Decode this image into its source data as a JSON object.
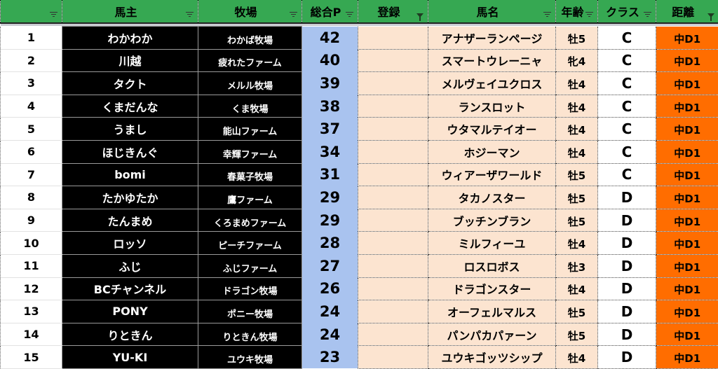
{
  "headers": [
    "",
    "馬主",
    "牧場",
    "総合P",
    "登録",
    "馬名",
    "年齢",
    "クラス",
    "距離"
  ],
  "active_filters": [
    "登録",
    "距離"
  ],
  "colors": {
    "header": "#36a852",
    "owner_bg": "#000000",
    "points_bg": "#a9c3ef",
    "entry_bg": "#fce4d0",
    "distance_bg": "#ff6d00"
  },
  "rows": [
    {
      "no": "1",
      "owner": "わかわか",
      "farm": "わかば牧場",
      "points": "42",
      "reg": "",
      "horse": "アナザーランページ",
      "age": "牡5",
      "cls": "C",
      "dist": "中D1"
    },
    {
      "no": "2",
      "owner": "川越",
      "farm": "疲れたファーム",
      "points": "40",
      "reg": "",
      "horse": "スマートウレーニャ",
      "age": "牝4",
      "cls": "C",
      "dist": "中D1"
    },
    {
      "no": "3",
      "owner": "タクト",
      "farm": "メルル牧場",
      "points": "39",
      "reg": "",
      "horse": "メルヴェイユクロス",
      "age": "牡4",
      "cls": "C",
      "dist": "中D1"
    },
    {
      "no": "4",
      "owner": "くまだんな",
      "farm": "くま牧場",
      "points": "38",
      "reg": "",
      "horse": "ランスロット",
      "age": "牡4",
      "cls": "C",
      "dist": "中D1"
    },
    {
      "no": "5",
      "owner": "うまし",
      "farm": "能山ファーム",
      "points": "37",
      "reg": "",
      "horse": "ウタマルテイオー",
      "age": "牡4",
      "cls": "C",
      "dist": "中D1"
    },
    {
      "no": "6",
      "owner": "ほじきんぐ",
      "farm": "幸輝ファーム",
      "points": "34",
      "reg": "",
      "horse": "ホジーマン",
      "age": "牡4",
      "cls": "C",
      "dist": "中D1"
    },
    {
      "no": "7",
      "owner": "bomi",
      "farm": "春菓子牧場",
      "points": "31",
      "reg": "",
      "horse": "ウィアーザワールド",
      "age": "牡5",
      "cls": "C",
      "dist": "中D1"
    },
    {
      "no": "8",
      "owner": "たかゆたか",
      "farm": "鷹ファーム",
      "points": "29",
      "reg": "",
      "horse": "タカノスター",
      "age": "牡5",
      "cls": "D",
      "dist": "中D1"
    },
    {
      "no": "9",
      "owner": "たんまめ",
      "farm": "くろまめファーム",
      "points": "29",
      "reg": "",
      "horse": "ブッチンブラン",
      "age": "牡5",
      "cls": "D",
      "dist": "中D1"
    },
    {
      "no": "10",
      "owner": "ロッソ",
      "farm": "ピーチファーム",
      "points": "28",
      "reg": "",
      "horse": "ミルフィーユ",
      "age": "牡4",
      "cls": "D",
      "dist": "中D1"
    },
    {
      "no": "11",
      "owner": "ふじ",
      "farm": "ふじファーム",
      "points": "27",
      "reg": "",
      "horse": "ロスロボス",
      "age": "牡3",
      "cls": "D",
      "dist": "中D1"
    },
    {
      "no": "12",
      "owner": "BCチャンネル",
      "farm": "ドラゴン牧場",
      "points": "26",
      "reg": "",
      "horse": "ドラゴンスター",
      "age": "牡4",
      "cls": "D",
      "dist": "中D1"
    },
    {
      "no": "13",
      "owner": "PONY",
      "farm": "ポニー牧場",
      "points": "24",
      "reg": "",
      "horse": "オーフェルマルス",
      "age": "牡5",
      "cls": "D",
      "dist": "中D1"
    },
    {
      "no": "14",
      "owner": "りときん",
      "farm": "りときん牧場",
      "points": "24",
      "reg": "",
      "horse": "パンパカパァーン",
      "age": "牡5",
      "cls": "D",
      "dist": "中D1"
    },
    {
      "no": "15",
      "owner": "YU-KI",
      "farm": "ユウキ牧場",
      "points": "23",
      "reg": "",
      "horse": "ユウキゴッツシップ",
      "age": "牡4",
      "cls": "D",
      "dist": "中D1"
    }
  ]
}
